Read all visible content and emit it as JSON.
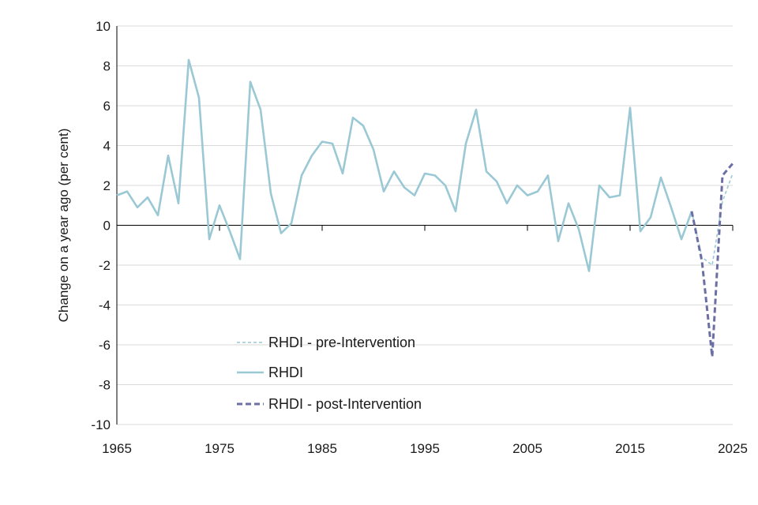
{
  "chart_data": {
    "type": "line",
    "ylabel": "Change on a year ago (per cent)",
    "xlabel": "",
    "xlim": [
      1965,
      2025
    ],
    "ylim": [
      -10,
      10
    ],
    "x_ticks": [
      "1965",
      "1975",
      "1985",
      "1995",
      "2005",
      "2015",
      "2025"
    ],
    "y_ticks": [
      "10",
      "8",
      "6",
      "4",
      "2",
      "0",
      "-2",
      "-4",
      "-6",
      "-8",
      "-10"
    ],
    "grid": "horizontal",
    "legend_position": "lower-center",
    "series": [
      {
        "name": "RHDI - pre-Intervention",
        "style": "dotted",
        "color": "#9ac8d4",
        "x": [
          2021,
          2022,
          2023,
          2024,
          2025
        ],
        "y": [
          0.7,
          -1.6,
          -2.0,
          1.2,
          2.6
        ]
      },
      {
        "name": "RHDI",
        "style": "solid",
        "color": "#9ac8d4",
        "x": [
          1965,
          1966,
          1967,
          1968,
          1969,
          1970,
          1971,
          1972,
          1973,
          1974,
          1975,
          1976,
          1977,
          1978,
          1979,
          1980,
          1981,
          1982,
          1983,
          1984,
          1985,
          1986,
          1987,
          1988,
          1989,
          1990,
          1991,
          1992,
          1993,
          1994,
          1995,
          1996,
          1997,
          1998,
          1999,
          2000,
          2001,
          2002,
          2003,
          2004,
          2005,
          2006,
          2007,
          2008,
          2009,
          2010,
          2011,
          2012,
          2013,
          2014,
          2015,
          2016,
          2017,
          2018,
          2019,
          2020,
          2021
        ],
        "y": [
          1.5,
          1.7,
          0.9,
          1.4,
          0.5,
          3.5,
          1.1,
          8.3,
          6.4,
          -0.7,
          1.0,
          -0.3,
          -1.7,
          7.2,
          5.8,
          1.6,
          -0.4,
          0.1,
          2.5,
          3.5,
          4.2,
          4.1,
          2.6,
          5.4,
          5.0,
          3.8,
          1.7,
          2.7,
          1.9,
          1.5,
          2.6,
          2.5,
          2.0,
          0.7,
          4.1,
          5.8,
          2.7,
          2.2,
          1.1,
          2.0,
          1.5,
          1.7,
          2.5,
          -0.8,
          1.1,
          -0.2,
          -2.3,
          2.0,
          1.4,
          1.5,
          5.9,
          -0.3,
          0.4,
          2.4,
          0.9,
          -0.7,
          0.7
        ]
      },
      {
        "name": "RHDI - post-Intervention",
        "style": "dashed",
        "color": "#6b6fa3",
        "x": [
          2021,
          2022,
          2023,
          2024,
          2025
        ],
        "y": [
          0.7,
          -1.8,
          -6.6,
          2.5,
          3.1
        ]
      }
    ]
  }
}
